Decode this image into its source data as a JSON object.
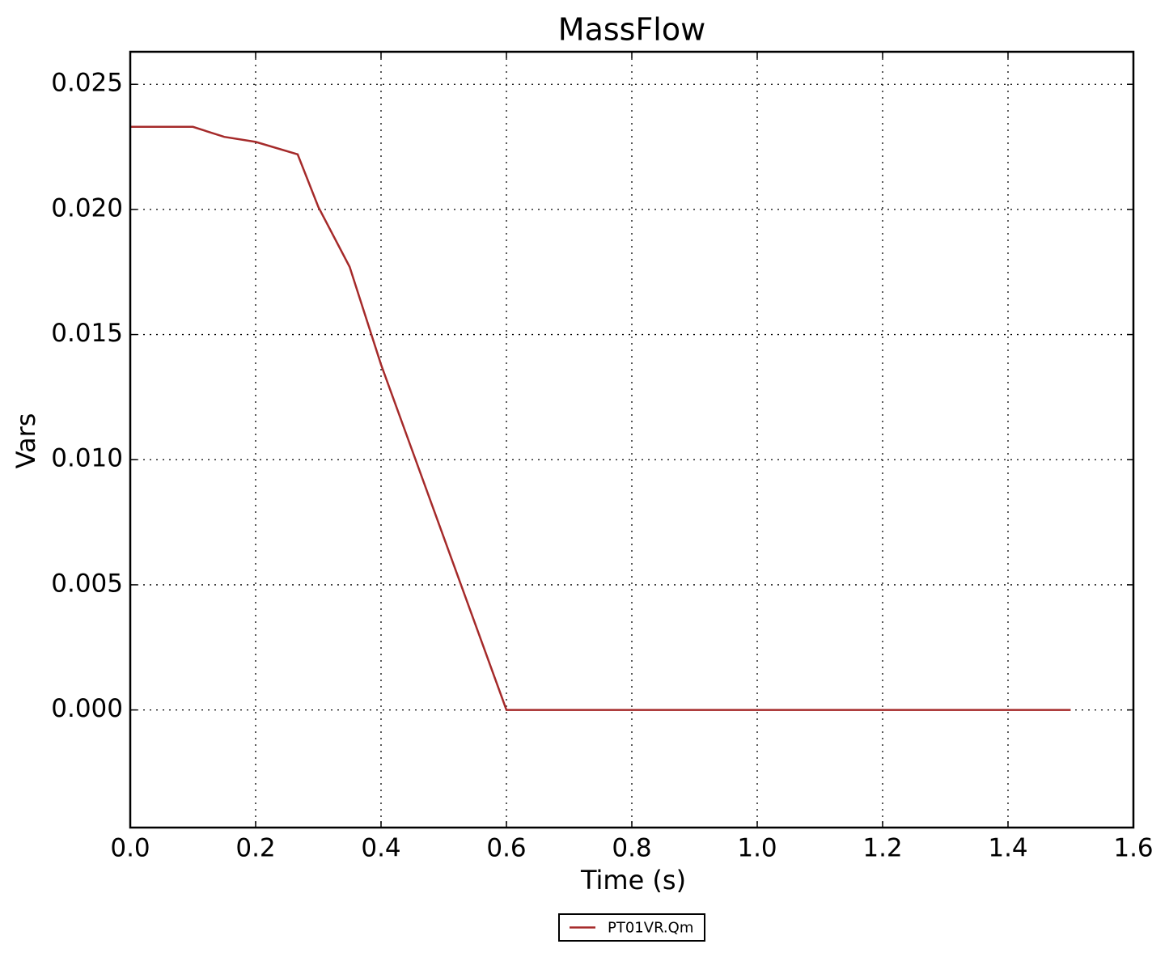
{
  "chart_data": {
    "type": "line",
    "title": "MassFlow",
    "x_label": "Time (s)",
    "y_label": "Vars",
    "x": [
      0,
      0.1,
      0.15,
      0.2,
      0.267,
      0.3,
      0.35,
      0.4,
      0.6,
      1.5
    ],
    "series": [
      {
        "name": "PT01VR.Qm",
        "color": "#a52a2a",
        "values": [
          0.0233,
          0.0233,
          0.0229,
          0.0227,
          0.0222,
          0.0201,
          0.0177,
          0.0138,
          0,
          0
        ]
      }
    ],
    "xlim": [
      0,
      1.6
    ],
    "xticks": [
      {
        "value": 0,
        "label": "0.0"
      },
      0.2,
      0.4,
      0.6,
      0.8,
      {
        "value": 1,
        "label": "1.0"
      },
      1.2,
      1.4,
      1.6
    ],
    "ylim": [
      -0.0047,
      0.0263
    ],
    "yticks": [
      {
        "value": 0,
        "label": "0.000"
      },
      {
        "value": 0.005,
        "label": "0.005"
      },
      {
        "value": 0.01,
        "label": "0.010"
      },
      {
        "value": 0.015,
        "label": "0.015"
      },
      {
        "value": 0.02,
        "label": "0.020"
      },
      {
        "value": 0.025,
        "label": "0.025"
      }
    ],
    "grid": true,
    "legend": "bottom"
  }
}
